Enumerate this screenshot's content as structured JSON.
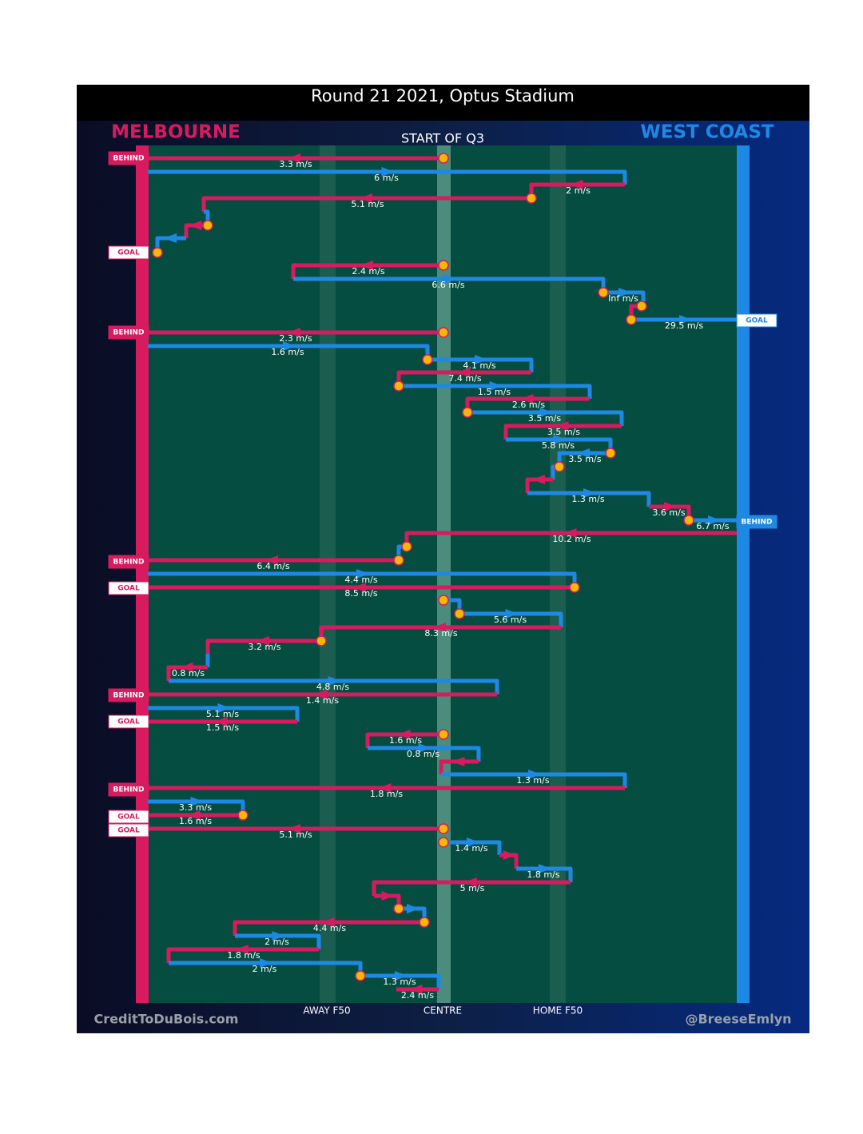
{
  "header": {
    "title": "Round 21 2021, Optus Stadium",
    "home_team": "MELBOURNE",
    "away_team": "WEST COAST",
    "period": "START OF Q3"
  },
  "field_labels": [
    "AWAY F50",
    "CENTRE",
    "HOME F50"
  ],
  "credits": [
    "CreditToDuBois.com",
    "@BreeseEmlyn"
  ],
  "speeds": [
    "3.3 m/s",
    "6 m/s",
    "2 m/s",
    "5.1 m/s",
    "2.4 m/s",
    "6.6 m/s",
    "Inf m/s",
    "29.5 m/s",
    "2.3 m/s",
    "1.6 m/s",
    "4.1 m/s",
    "7.4 m/s",
    "1.5 m/s",
    "2.6 m/s",
    "3.5 m/s",
    "3.5 m/s",
    "5.8 m/s",
    "3.5 m/s",
    "1.3 m/s",
    "3.6 m/s",
    "6.7 m/s",
    "10.2 m/s",
    "6.4 m/s",
    "4.4 m/s",
    "8.5 m/s",
    "5.6 m/s",
    "8.3 m/s",
    "3.2 m/s",
    "0.8 m/s",
    "4.8 m/s",
    "1.4 m/s",
    "5.1 m/s",
    "1.5 m/s",
    "1.6 m/s",
    "0.8 m/s",
    "1.3 m/s",
    "1.8 m/s",
    "3.3 m/s",
    "1.6 m/s",
    "5.1 m/s",
    "1.4 m/s",
    "1.8 m/s",
    "5 m/s",
    "4.4 m/s",
    "2 m/s",
    "1.8 m/s",
    "2 m/s",
    "1.3 m/s",
    "2.4 m/s"
  ],
  "outcomes": {
    "left": [
      "BEHIND",
      "GOAL",
      "BEHIND",
      "BEHIND",
      "GOAL",
      "BEHIND",
      "GOAL",
      "BEHIND",
      "GOAL",
      "GOAL"
    ],
    "right": [
      "GOAL",
      "BEHIND"
    ]
  }
}
